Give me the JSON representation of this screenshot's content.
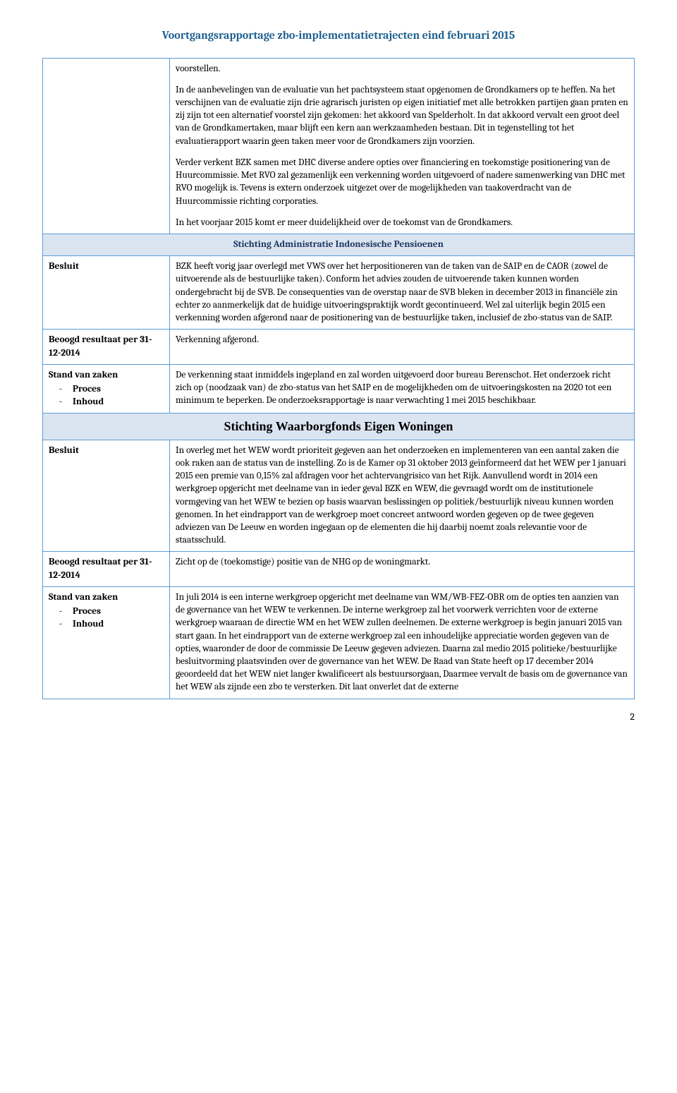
{
  "header": {
    "title": "Voortgangsrapportage zbo-implementatietrajecten eind februari 2015"
  },
  "labels": {
    "besluit": "Besluit",
    "beoogd_resultaat": "Beoogd resultaat per 31-12-2014",
    "stand_van_zaken": "Stand van zaken",
    "proces": "Proces",
    "inhoud": "Inhoud",
    "dash": "-"
  },
  "section0": {
    "voorstellen": "voorstellen.",
    "p1": "In de aanbevelingen van de evaluatie van het pachtsysteem staat opgenomen de Grondkamers op te heffen.",
    "p2": "Na het verschijnen van de evaluatie zijn drie agrarisch juristen op eigen initiatief met alle betrokken partijen gaan praten en zij zijn tot een alternatief voorstel zijn gekomen: het akkoord van Spelderholt. In dat akkoord vervalt een groot deel van de Grondkamertaken, maar blijft een kern aan werkzaamheden bestaan. Dit in tegenstelling tot het evaluatierapport  waarin geen taken meer voor de Grondkamers zijn voorzien.",
    "p3": "Verder verkent BZK samen met DHC diverse andere opties over financiering en toekomstige positionering van de Huurcommissie. Met RVO zal gezamenlijk een verkenning worden uitgevoerd of nadere samenwerking van DHC met RVO mogelijk is. Tevens is extern onderzoek uitgezet over de mogelijkheden van taakoverdracht van de Huurcommissie richting corporaties.",
    "p4": "In het voorjaar 2015 komt er meer duidelijkheid over de toekomst van de Grondkamers."
  },
  "section1": {
    "title": "Stichting Administratie Indonesische Pensioenen",
    "besluit": "BZK heeft vorig jaar overlegd met VWS over het herpositioneren van de taken van de SAIP en de CAOR (zowel de uitvoerende als de bestuurlijke taken). Conform het advies zouden de uitvoerende taken kunnen worden ondergebracht bij de SVB. De consequenties van de overstap naar de SVB bleken in december 2013 in financiële zin echter zo aanmerkelijk dat de huidige uitvoeringspraktijk wordt gecontinueerd. Wel zal uiterlijk begin 2015 een verkenning worden afgerond naar de positionering van de bestuurlijke taken, inclusief de zbo-status van de SAIP.",
    "beoogd": "Verkenning afgerond.",
    "stand": "De verkenning staat inmiddels ingepland en zal worden uitgevoerd door bureau Berenschot. Het onderzoek richt zich op (noodzaak van) de zbo-status van het SAIP en de mogelijkheden om de uitvoeringskosten na 2020 tot een minimum te beperken. De onderzoeksrapportage is naar verwachting 1 mei 2015 beschikbaar."
  },
  "section2": {
    "title": "Stichting Waarborgfonds Eigen Woningen",
    "besluit": "In overleg met het WEW wordt prioriteit gegeven aan het onderzoeken en implementeren van een aantal zaken die ook raken aan de status van de instelling. Zo is de Kamer op 31 oktober 2013 geïnformeerd dat het WEW per 1 januari 2015 een premie van 0,15% zal afdragen voor het achtervangrisico van het Rijk. Aanvullend wordt in 2014 een werkgroep opgericht met deelname van in ieder geval BZK en WEW, die gevraagd wordt om de institutionele vormgeving van het WEW te bezien op basis waarvan beslissingen op politiek/bestuurlijk niveau kunnen worden genomen. In het eindrapport van de werkgroep moet concreet antwoord worden gegeven op de twee gegeven adviezen van De Leeuw en worden ingegaan op de elementen die hij daarbij noemt zoals relevantie voor de staatsschuld.",
    "beoogd": "Zicht op de (toekomstige) positie van de NHG op de woningmarkt.",
    "stand": "In juli 2014 is een interne werkgroep opgericht met deelname van WM/WB-FEZ-OBR om de opties ten aanzien van de governance van het WEW te verkennen. De interne werkgroep zal het voorwerk verrichten voor de externe werkgroep waaraan de directie WM en het WEW zullen deelnemen. De externe werkgroep is begin januari 2015 van start gaan. In het eindrapport van de externe werkgroep zal een inhoudelijke appreciatie worden gegeven van de opties, waaronder de door de commissie De Leeuw gegeven adviezen. Daarna zal medio 2015 politieke/bestuurlijke besluitvorming plaatsvinden over de governance van het WEW. De Raad van State heeft op 17 december 2014 geoordeeld dat het WEW niet langer kwalificeert als bestuursorgaan, Daarmee vervalt de basis om de governance van het WEW als zijnde een zbo te versterken. Dit laat onverlet dat de  externe"
  },
  "pageNumber": "2",
  "colors": {
    "border": "#5b9bd5",
    "header_text": "#1f6091",
    "section_bg": "#dbe5f1",
    "section_text": "#1f3763"
  }
}
